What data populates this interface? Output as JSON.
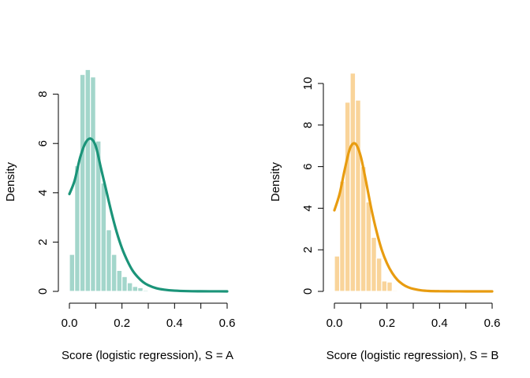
{
  "chart_data": [
    {
      "type": "bar",
      "panel": "left",
      "xlabel": "Score (logistic regression), S = A",
      "ylabel": "Density",
      "xlim": [
        0,
        0.6
      ],
      "ylim": [
        0,
        9
      ],
      "x_ticks": [
        0.0,
        0.2,
        0.4,
        0.6
      ],
      "x_tick_labels": [
        "0.0",
        "0.2",
        "0.4",
        "0.6"
      ],
      "y_ticks": [
        0,
        2,
        4,
        6,
        8
      ],
      "y_tick_labels": [
        "0",
        "2",
        "4",
        "6",
        "8"
      ],
      "bin_width": 0.02,
      "histogram": {
        "bin_start": [
          0.0,
          0.02,
          0.04,
          0.06,
          0.08,
          0.1,
          0.12,
          0.14,
          0.16,
          0.18,
          0.2,
          0.22,
          0.24,
          0.26,
          0.28,
          0.3,
          0.32,
          0.34
        ],
        "density": [
          1.5,
          5.1,
          8.8,
          9.0,
          8.7,
          6.1,
          4.4,
          2.5,
          1.5,
          0.85,
          0.6,
          0.35,
          0.2,
          0.15,
          0.05,
          0.03,
          0.02,
          0.01
        ],
        "color": "#a3d6cb"
      },
      "density_curve": {
        "x": [
          0.0,
          0.02,
          0.04,
          0.06,
          0.08,
          0.1,
          0.12,
          0.14,
          0.16,
          0.18,
          0.2,
          0.22,
          0.24,
          0.26,
          0.28,
          0.3,
          0.33,
          0.36,
          0.4,
          0.45,
          0.5,
          0.55,
          0.6
        ],
        "y": [
          3.95,
          4.5,
          5.4,
          6.0,
          6.2,
          5.9,
          5.0,
          4.1,
          3.2,
          2.4,
          1.75,
          1.25,
          0.85,
          0.58,
          0.38,
          0.25,
          0.13,
          0.07,
          0.03,
          0.01,
          0.004,
          0.002,
          0.001
        ],
        "color": "#1b9479"
      }
    },
    {
      "type": "bar",
      "panel": "right",
      "xlabel": "Score (logistic regression), S = B",
      "ylabel": "Density",
      "xlim": [
        0,
        0.6
      ],
      "ylim": [
        0,
        10.5
      ],
      "x_ticks": [
        0.0,
        0.2,
        0.4,
        0.6
      ],
      "x_tick_labels": [
        "0.0",
        "0.2",
        "0.4",
        "0.6"
      ],
      "y_ticks": [
        0,
        2,
        4,
        6,
        8,
        10
      ],
      "y_tick_labels": [
        "0",
        "2",
        "4",
        "6",
        "8",
        "10"
      ],
      "bin_width": 0.02,
      "histogram": {
        "bin_start": [
          0.0,
          0.02,
          0.04,
          0.06,
          0.08,
          0.1,
          0.12,
          0.14,
          0.16,
          0.18,
          0.2,
          0.22
        ],
        "density": [
          1.7,
          5.3,
          9.1,
          10.5,
          9.2,
          6.0,
          4.3,
          2.6,
          1.6,
          0.5,
          0.45,
          0.05
        ],
        "color": "#f9d49a"
      },
      "density_curve": {
        "x": [
          0.0,
          0.02,
          0.04,
          0.06,
          0.08,
          0.1,
          0.12,
          0.14,
          0.16,
          0.18,
          0.2,
          0.22,
          0.24,
          0.26,
          0.28,
          0.3,
          0.33,
          0.36,
          0.4,
          0.45,
          0.5,
          0.55,
          0.6
        ],
        "y": [
          3.9,
          4.7,
          5.9,
          6.9,
          7.1,
          6.5,
          5.3,
          4.0,
          2.9,
          2.0,
          1.35,
          0.88,
          0.55,
          0.34,
          0.2,
          0.12,
          0.05,
          0.02,
          0.008,
          0.003,
          0.001,
          0.0005,
          0.0002
        ],
        "color": "#e89c10"
      }
    }
  ]
}
